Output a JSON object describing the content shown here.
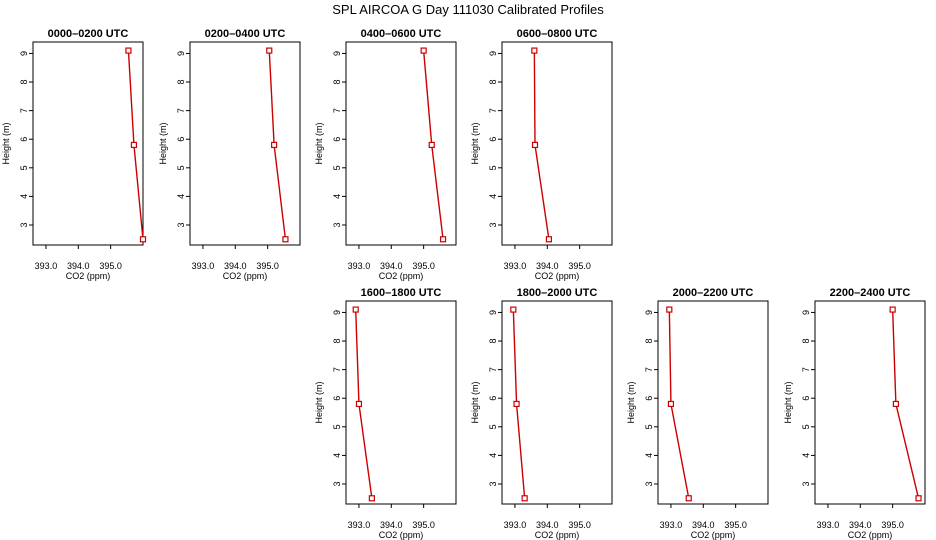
{
  "figure_title": "SPL AIRCOA G  Day 111030  Calibrated Profiles",
  "colors": {
    "profile_line": "#cc0000",
    "marker": "#cc0000",
    "axis": "#000000"
  },
  "chart_data": [
    {
      "type": "line",
      "title": "0000–0200 UTC",
      "xlabel": "CO2 (ppm)",
      "ylabel": "Height (m)",
      "xlim": [
        392.6,
        396.0
      ],
      "ylim": [
        2.3,
        9.4
      ],
      "x_ticks": [
        "393.0",
        "394.0",
        "395.0"
      ],
      "y_ticks": [
        "3",
        "4",
        "5",
        "6",
        "7",
        "8",
        "9"
      ],
      "series": [
        {
          "x": [
            395.55,
            395.72,
            396.0
          ],
          "y": [
            9.1,
            5.8,
            2.5
          ]
        }
      ]
    },
    {
      "type": "line",
      "title": "0200–0400 UTC",
      "xlabel": "CO2 (ppm)",
      "ylabel": "Height (m)",
      "xlim": [
        392.6,
        396.0
      ],
      "ylim": [
        2.3,
        9.4
      ],
      "x_ticks": [
        "393.0",
        "394.0",
        "395.0"
      ],
      "y_ticks": [
        "3",
        "4",
        "5",
        "6",
        "7",
        "8",
        "9"
      ],
      "series": [
        {
          "x": [
            395.05,
            395.2,
            395.55
          ],
          "y": [
            9.1,
            5.8,
            2.5
          ]
        }
      ]
    },
    {
      "type": "line",
      "title": "0400–0600 UTC",
      "xlabel": "CO2 (ppm)",
      "ylabel": "Height (m)",
      "xlim": [
        392.6,
        396.0
      ],
      "ylim": [
        2.3,
        9.4
      ],
      "x_ticks": [
        "393.0",
        "394.0",
        "395.0"
      ],
      "y_ticks": [
        "3",
        "4",
        "5",
        "6",
        "7",
        "8",
        "9"
      ],
      "series": [
        {
          "x": [
            395.0,
            395.25,
            395.6
          ],
          "y": [
            9.1,
            5.8,
            2.5
          ]
        }
      ]
    },
    {
      "type": "line",
      "title": "0600–0800 UTC",
      "xlabel": "CO2 (ppm)",
      "ylabel": "Height (m)",
      "xlim": [
        392.6,
        396.0
      ],
      "ylim": [
        2.3,
        9.4
      ],
      "x_ticks": [
        "393.0",
        "394.0",
        "395.0"
      ],
      "y_ticks": [
        "3",
        "4",
        "5",
        "6",
        "7",
        "8",
        "9"
      ],
      "series": [
        {
          "x": [
            393.6,
            393.62,
            394.05
          ],
          "y": [
            9.1,
            5.8,
            2.5
          ]
        }
      ]
    },
    {
      "type": "line",
      "title": "1600–1800 UTC",
      "xlabel": "CO2 (ppm)",
      "ylabel": "Height (m)",
      "xlim": [
        392.6,
        396.0
      ],
      "ylim": [
        2.3,
        9.4
      ],
      "x_ticks": [
        "393.0",
        "394.0",
        "395.0"
      ],
      "y_ticks": [
        "3",
        "4",
        "5",
        "6",
        "7",
        "8",
        "9"
      ],
      "series": [
        {
          "x": [
            392.9,
            393.0,
            393.4
          ],
          "y": [
            9.1,
            5.8,
            2.5
          ]
        }
      ]
    },
    {
      "type": "line",
      "title": "1800–2000 UTC",
      "xlabel": "CO2 (ppm)",
      "ylabel": "Height (m)",
      "xlim": [
        392.6,
        396.0
      ],
      "ylim": [
        2.3,
        9.4
      ],
      "x_ticks": [
        "393.0",
        "394.0",
        "395.0"
      ],
      "y_ticks": [
        "3",
        "4",
        "5",
        "6",
        "7",
        "8",
        "9"
      ],
      "series": [
        {
          "x": [
            392.95,
            393.05,
            393.3
          ],
          "y": [
            9.1,
            5.8,
            2.5
          ]
        }
      ]
    },
    {
      "type": "line",
      "title": "2000–2200 UTC",
      "xlabel": "CO2 (ppm)",
      "ylabel": "Height (m)",
      "xlim": [
        392.6,
        396.0
      ],
      "ylim": [
        2.3,
        9.4
      ],
      "x_ticks": [
        "393.0",
        "394.0",
        "395.0"
      ],
      "y_ticks": [
        "3",
        "4",
        "5",
        "6",
        "7",
        "8",
        "9"
      ],
      "series": [
        {
          "x": [
            392.95,
            393.0,
            393.55
          ],
          "y": [
            9.1,
            5.8,
            2.5
          ]
        }
      ]
    },
    {
      "type": "line",
      "title": "2200–2400 UTC",
      "xlabel": "CO2 (ppm)",
      "ylabel": "Height (m)",
      "xlim": [
        392.6,
        396.0
      ],
      "ylim": [
        2.3,
        9.4
      ],
      "x_ticks": [
        "393.0",
        "394.0",
        "395.0"
      ],
      "y_ticks": [
        "3",
        "4",
        "5",
        "6",
        "7",
        "8",
        "9"
      ],
      "series": [
        {
          "x": [
            395.0,
            395.1,
            395.8
          ],
          "y": [
            9.1,
            5.8,
            2.5
          ]
        }
      ]
    }
  ]
}
